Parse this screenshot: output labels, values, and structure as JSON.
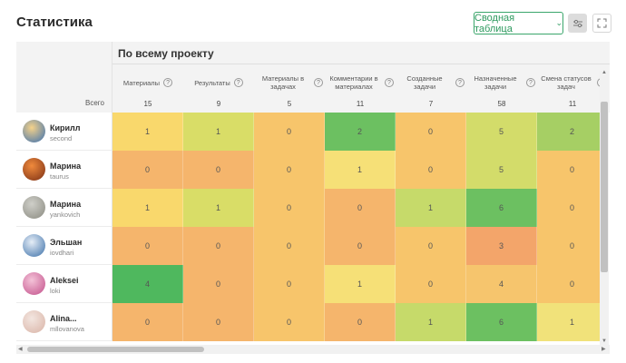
{
  "header": {
    "title": "Статистика",
    "pivot_label": "Сводная таблица"
  },
  "table": {
    "section_title": "По всему проекту",
    "total_label": "Всего",
    "columns": [
      {
        "label": "Материалы",
        "total": "15"
      },
      {
        "label": "Результаты",
        "total": "9"
      },
      {
        "label": "Материалы в задачах",
        "total": "5"
      },
      {
        "label": "Комментарии в материалах",
        "total": "11"
      },
      {
        "label": "Созданные задачи",
        "total": "7"
      },
      {
        "label": "Назначенные задачи",
        "total": "58"
      },
      {
        "label": "Смена статусов задач",
        "total": "11"
      }
    ],
    "rows": [
      {
        "name": "Кирилл",
        "login": "second",
        "values": [
          "1",
          "1",
          "0",
          "2",
          "0",
          "5",
          "2"
        ],
        "colors": [
          "#f9d86c",
          "#d9dd67",
          "#f7c56b",
          "#6cc061",
          "#f7c56b",
          "#d3dc6a",
          "#a6cf64"
        ]
      },
      {
        "name": "Марина",
        "login": "taurus",
        "values": [
          "0",
          "0",
          "0",
          "1",
          "0",
          "5",
          "0"
        ],
        "colors": [
          "#f5b56c",
          "#f5b56c",
          "#f7c56b",
          "#f6e077",
          "#f7c56b",
          "#d3dc6a",
          "#f7c56b"
        ]
      },
      {
        "name": "Марина",
        "login": "yankovich",
        "values": [
          "1",
          "1",
          "0",
          "0",
          "1",
          "6",
          "0"
        ],
        "colors": [
          "#f9d86c",
          "#d9dd67",
          "#f7c56b",
          "#f5b56c",
          "#c6da6a",
          "#6cc061",
          "#f7c56b"
        ]
      },
      {
        "name": "Эльшан",
        "login": "iovdhari",
        "values": [
          "0",
          "0",
          "0",
          "0",
          "0",
          "3",
          "0"
        ],
        "colors": [
          "#f5b56c",
          "#f5b56c",
          "#f7c56b",
          "#f5b56c",
          "#f7c56b",
          "#f3a56a",
          "#f7c56b"
        ]
      },
      {
        "name": "Aleksei",
        "login": "loki",
        "values": [
          "4",
          "0",
          "0",
          "1",
          "0",
          "4",
          "0"
        ],
        "colors": [
          "#4fb85e",
          "#f5b56c",
          "#f7c56b",
          "#f6e077",
          "#f7c56b",
          "#f6c56d",
          "#f7c56b"
        ]
      },
      {
        "name": "Alina...",
        "login": "mllovanova",
        "values": [
          "0",
          "0",
          "0",
          "0",
          "1",
          "6",
          "1"
        ],
        "colors": [
          "#f5b56c",
          "#f5b56c",
          "#f7c56b",
          "#f5b56c",
          "#c6da6a",
          "#6cc061",
          "#f1e27a"
        ]
      }
    ]
  }
}
